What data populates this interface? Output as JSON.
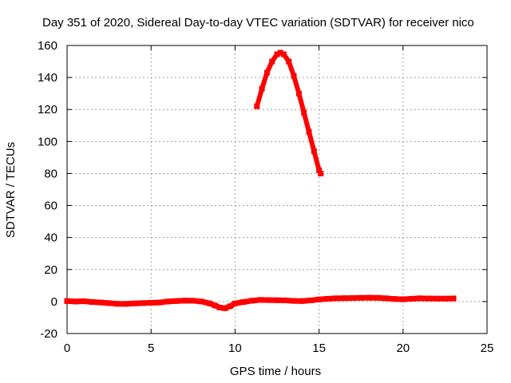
{
  "chart_data": {
    "type": "scatter",
    "title": "Day 351 of 2020, Sidereal Day-to-day VTEC variation (SDTVAR) for receiver nico",
    "xlabel": "GPS time / hours",
    "ylabel": "SDTVAR / TECUs",
    "xlim": [
      0,
      25
    ],
    "ylim": [
      -20,
      160
    ],
    "xticks": [
      0,
      5,
      10,
      15,
      20,
      25
    ],
    "yticks": [
      -20,
      0,
      20,
      40,
      60,
      80,
      100,
      120,
      140,
      160
    ],
    "grid": true,
    "series_color": "#ff0000",
    "series": [
      {
        "name": "baseline",
        "x": [
          0.0,
          0.5,
          1.0,
          1.5,
          2.0,
          2.5,
          3.0,
          3.5,
          4.0,
          4.5,
          5.0,
          5.5,
          6.0,
          6.5,
          7.0,
          7.5,
          8.0,
          8.5,
          8.8,
          9.1,
          9.4,
          9.7,
          10.0,
          10.5,
          11.0,
          11.5,
          12.0,
          12.5,
          13.0,
          13.5,
          14.0,
          14.5,
          15.0,
          15.5,
          16.0,
          16.5,
          17.0,
          17.5,
          18.0,
          18.5,
          19.0,
          19.5,
          20.0,
          20.5,
          21.0,
          21.5,
          22.0,
          22.5,
          23.0
        ],
        "y": [
          0.3,
          0.0,
          0.2,
          -0.3,
          -0.6,
          -1.0,
          -1.4,
          -1.5,
          -1.2,
          -1.0,
          -0.8,
          -0.6,
          0.0,
          0.3,
          0.6,
          0.5,
          0.0,
          -1.2,
          -2.5,
          -3.8,
          -4.2,
          -3.0,
          -1.2,
          -0.3,
          0.5,
          1.0,
          0.9,
          0.8,
          0.7,
          0.4,
          0.3,
          0.7,
          1.3,
          1.7,
          2.0,
          2.1,
          2.2,
          2.3,
          2.4,
          2.3,
          2.0,
          1.6,
          1.4,
          1.7,
          2.0,
          1.9,
          1.8,
          1.8,
          1.9
        ]
      },
      {
        "name": "arc",
        "x": [
          11.3,
          11.6,
          11.9,
          12.2,
          12.5,
          12.7,
          12.9,
          13.2,
          13.5,
          13.8,
          14.1,
          14.4,
          14.7,
          15.0,
          15.1
        ],
        "y": [
          122,
          133,
          143,
          150,
          154.5,
          155.5,
          154.5,
          150,
          141,
          130,
          118,
          106,
          94,
          82,
          80
        ]
      }
    ]
  }
}
